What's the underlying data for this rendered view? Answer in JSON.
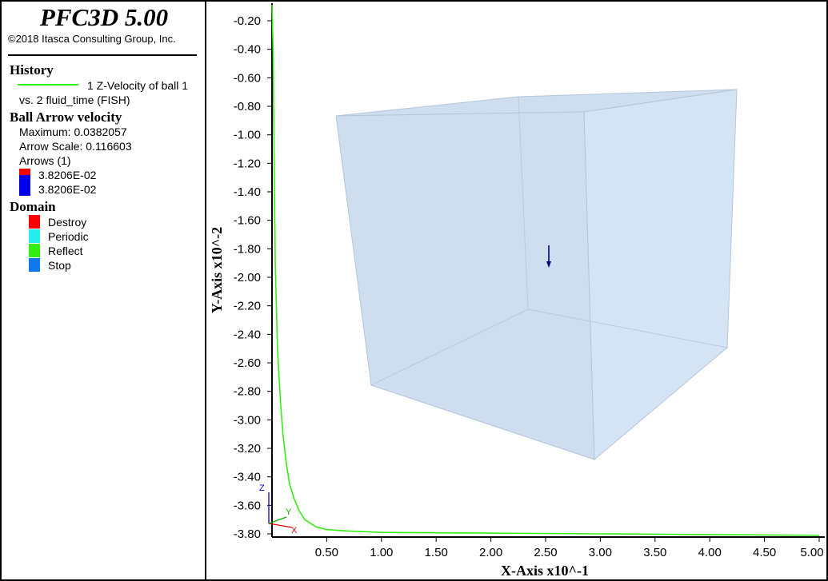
{
  "app": {
    "title": "PFC3D 5.00",
    "copyright": "©2018 Itasca Consulting Group, Inc."
  },
  "legend": {
    "history": {
      "heading": "History",
      "line1": "1 Z-Velocity of ball 1",
      "line2": "vs. 2 fluid_time (FISH)",
      "color": "#33ee11"
    },
    "arrows": {
      "heading": "Ball Arrow velocity",
      "maximum": "Maximum: 0.0382057",
      "scale": "Arrow Scale: 0.116603",
      "count": "Arrows (1)",
      "value_top": "3.8206E-02",
      "value_bottom": "3.8206E-02",
      "color_top": "#ff0000",
      "color_bottom": "#0000ee"
    },
    "domain": {
      "heading": "Domain",
      "items": [
        {
          "label": "Destroy",
          "color": "#ff0000"
        },
        {
          "label": "Periodic",
          "color": "#22eeee"
        },
        {
          "label": "Reflect",
          "color": "#33ee11"
        },
        {
          "label": "Stop",
          "color": "#1177ee"
        }
      ]
    }
  },
  "axes_triad": {
    "x": "X",
    "y": "Y",
    "z": "Z"
  },
  "chart_data": {
    "type": "line",
    "xlabel": "X-Axis x10^-1",
    "ylabel": "Y-Axis x10^-2",
    "xlim": [
      0.0,
      5.0
    ],
    "ylim": [
      -3.82,
      -0.1
    ],
    "x_ticks": [
      "0.50",
      "1.00",
      "1.50",
      "2.00",
      "2.50",
      "3.00",
      "3.50",
      "4.00",
      "4.50",
      "5.00"
    ],
    "y_ticks": [
      "-0.20",
      "-0.40",
      "-0.60",
      "-0.80",
      "-1.00",
      "-1.20",
      "-1.40",
      "-1.60",
      "-1.80",
      "-2.00",
      "-2.20",
      "-2.40",
      "-2.60",
      "-2.80",
      "-3.00",
      "-3.20",
      "-3.40",
      "-3.60",
      "-3.80"
    ],
    "grid": false,
    "series": [
      {
        "name": "1 Z-Velocity of ball 1",
        "color": "#33ee11",
        "x": [
          0.0,
          0.01,
          0.02,
          0.03,
          0.05,
          0.08,
          0.1,
          0.13,
          0.16,
          0.2,
          0.25,
          0.3,
          0.4,
          0.5,
          0.7,
          1.0,
          2.0,
          3.0,
          4.0,
          5.0
        ],
        "y": [
          -0.08,
          -0.4,
          -1.2,
          -1.9,
          -2.5,
          -2.9,
          -3.1,
          -3.3,
          -3.45,
          -3.55,
          -3.64,
          -3.7,
          -3.75,
          -3.77,
          -3.78,
          -3.79,
          -3.795,
          -3.8,
          -3.805,
          -3.81
        ]
      }
    ]
  }
}
